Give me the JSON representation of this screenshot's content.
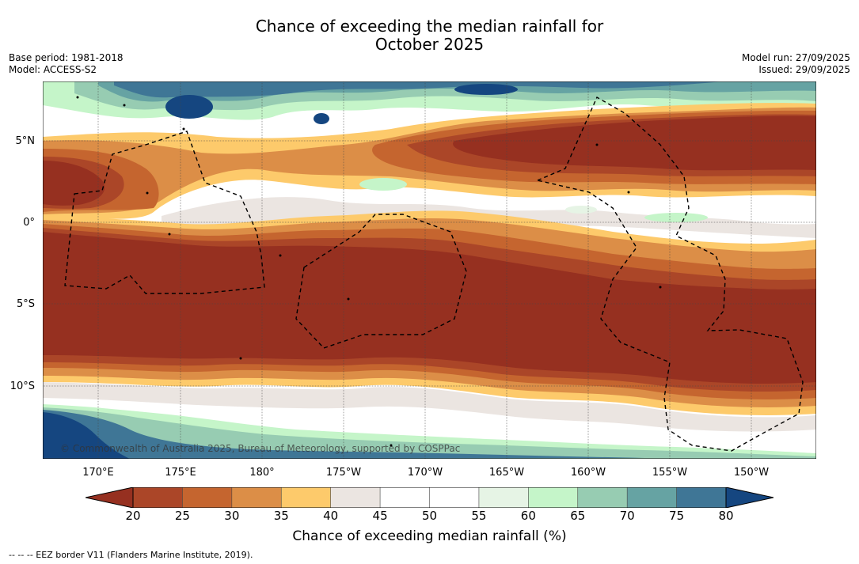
{
  "title_line1": "Chance of exceeding the median rainfall for",
  "title_line2": "October 2025",
  "base_period": "Base period: 1981-2018",
  "model": "Model: ACCESS-S2",
  "model_run": "Model run: 27/09/2025",
  "issued": "Issued: 29/09/2025",
  "copyright": "© Commonwealth of Australia 2025, Bureau of Meteorology, supported by COSPPac",
  "lat_labels": [
    "5°N",
    "0°",
    "5°S",
    "10°S"
  ],
  "lon_labels": [
    "170°E",
    "175°E",
    "180°",
    "175°W",
    "170°W",
    "165°W",
    "160°W",
    "155°W",
    "150°W"
  ],
  "colorbar": {
    "ticks": [
      "20",
      "25",
      "30",
      "35",
      "40",
      "45",
      "50",
      "55",
      "60",
      "65",
      "70",
      "75",
      "80"
    ],
    "colors": [
      "#963020",
      "#ab4628",
      "#c5652f",
      "#dc8e47",
      "#fdca6b",
      "#ebe5e1",
      "#ffffff",
      "#ffffff",
      "#e6f4e5",
      "#c5f5c9",
      "#97ccb2",
      "#66a3a3",
      "#3f7696",
      "#154680"
    ],
    "label": "Chance of exceeding median rainfall (%)"
  },
  "footnote": "--  --  -- EEZ border V11 (Flanders Marine Institute, 2019)."
}
